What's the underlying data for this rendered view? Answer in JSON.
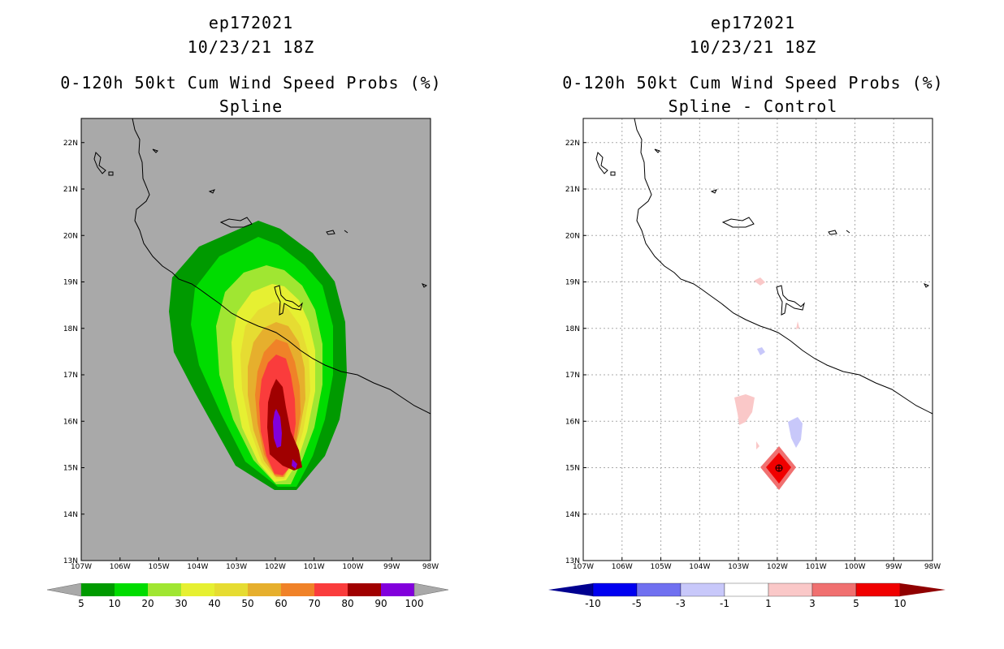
{
  "left": {
    "title_line1": "ep172021",
    "title_line2": "10/23/21 18Z",
    "title_line3": "0-120h 50kt Cum Wind Speed Probs (%)",
    "title_line4": "Spline",
    "background": "#a9a9a9",
    "lon_labels": [
      "107W",
      "106W",
      "105W",
      "104W",
      "103W",
      "102W",
      "101W",
      "100W",
      "99W",
      "98W"
    ],
    "lat_labels": [
      "13N",
      "14N",
      "15N",
      "16N",
      "17N",
      "18N",
      "19N",
      "20N",
      "21N",
      "22N"
    ],
    "colorbar": {
      "colors": [
        "#009a00",
        "#00dc00",
        "#a0e632",
        "#e6f032",
        "#e6dc32",
        "#e6af2d",
        "#f08228",
        "#fa3c3c",
        "#a00000",
        "#8200dc"
      ],
      "labels": [
        "5",
        "10",
        "20",
        "30",
        "40",
        "50",
        "60",
        "70",
        "80",
        "90",
        "100"
      ],
      "end_color": "#a9a9a9"
    },
    "contour_levels": [
      "5",
      "10",
      "20",
      "30",
      "40",
      "50",
      "60",
      "70",
      "80",
      "90"
    ]
  },
  "right": {
    "title_line1": "ep172021",
    "title_line2": "10/23/21 18Z",
    "title_line3": "0-120h 50kt Cum Wind Speed Probs (%)",
    "title_line4": "Spline - Control",
    "background": "#ffffff",
    "lon_labels": [
      "107W",
      "106W",
      "105W",
      "104W",
      "103W",
      "102W",
      "101W",
      "100W",
      "99W",
      "98W"
    ],
    "lat_labels": [
      "13N",
      "14N",
      "15N",
      "16N",
      "17N",
      "18N",
      "19N",
      "20N",
      "21N",
      "22N"
    ],
    "colorbar": {
      "colors": [
        "#0000f0",
        "#7070f0",
        "#c8c8fa",
        "#ffffff",
        "#fac8c8",
        "#f07070",
        "#f00000"
      ],
      "labels": [
        "-10",
        "-5",
        "-3",
        "-1",
        "1",
        "3",
        "5",
        "10"
      ],
      "low_end_color": "#000090",
      "high_end_color": "#900000"
    },
    "features": [
      {
        "name": "positive-blob-large",
        "color": "#fac8c8"
      },
      {
        "name": "negative-blob",
        "color": "#c8c8fa"
      },
      {
        "name": "positive-core",
        "color": "#f00000"
      }
    ]
  }
}
